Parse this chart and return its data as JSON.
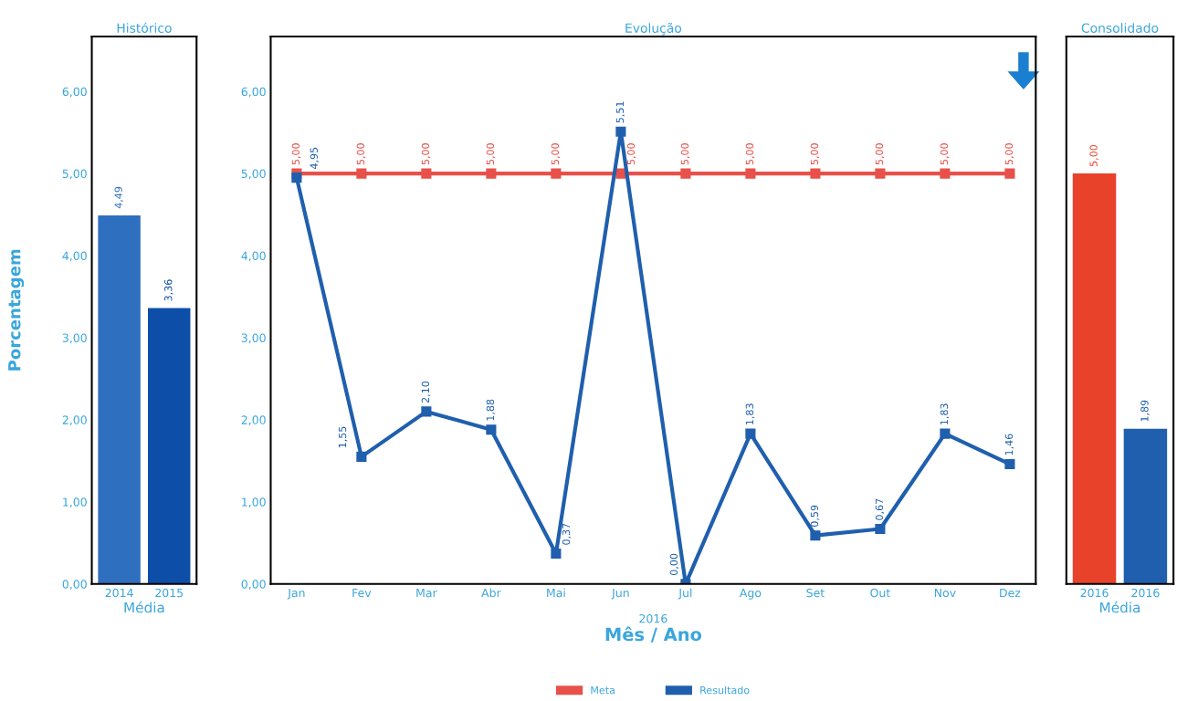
{
  "chart_data": [
    {
      "type": "bar",
      "title": "Histórico",
      "xlabel": "Média",
      "ylabel": "Porcentagem",
      "categories": [
        "2014",
        "2015"
      ],
      "values": [
        4.49,
        3.36
      ],
      "colors": [
        "#2f6fc0",
        "#0d4fa8"
      ],
      "value_labels": [
        "4,49",
        "3,36"
      ],
      "ylim": [
        0,
        6.67
      ],
      "yticks": [
        {
          "value": 0,
          "label": "0,00"
        },
        {
          "value": 1,
          "label": "1,00"
        },
        {
          "value": 2,
          "label": "2,00"
        },
        {
          "value": 3,
          "label": "3,00"
        },
        {
          "value": 4,
          "label": "4,00"
        },
        {
          "value": 5,
          "label": "5,00"
        },
        {
          "value": 6,
          "label": "6,00"
        }
      ],
      "grid": false
    },
    {
      "type": "line",
      "title": "Evolução",
      "xlabel": "Mês / Ano",
      "annotations": [
        "2016"
      ],
      "categories": [
        "Jan",
        "Fev",
        "Mar",
        "Abr",
        "Mai",
        "Jun",
        "Jul",
        "Ago",
        "Set",
        "Out",
        "Nov",
        "Dez"
      ],
      "marker": "square",
      "legend": "bottom",
      "grid": false,
      "ylim": [
        0,
        6.67
      ],
      "yticks": [
        {
          "value": 0,
          "label": "0,00"
        },
        {
          "value": 1,
          "label": "1,00"
        },
        {
          "value": 2,
          "label": "2,00"
        },
        {
          "value": 3,
          "label": "3,00"
        },
        {
          "value": 4,
          "label": "4,00"
        },
        {
          "value": 5,
          "label": "5,00"
        },
        {
          "value": 6,
          "label": "6,00"
        }
      ],
      "series": [
        {
          "name": "Meta",
          "color": "#e8504a",
          "values": [
            5.0,
            5.0,
            5.0,
            5.0,
            5.0,
            5.0,
            5.0,
            5.0,
            5.0,
            5.0,
            5.0,
            5.0
          ],
          "value_labels": [
            "5,00",
            "5,00",
            "5,00",
            "5,00",
            "5,00",
            "5,00",
            "5,00",
            "5,00",
            "5,00",
            "5,00",
            "5,00",
            "5,00"
          ]
        },
        {
          "name": "Resultado",
          "color": "#1f5fae",
          "values": [
            4.95,
            1.55,
            2.1,
            1.88,
            0.37,
            5.51,
            0.0,
            1.83,
            0.59,
            0.67,
            1.83,
            1.46
          ],
          "value_labels": [
            "4,95",
            "1,55",
            "2,10",
            "1,88",
            "0,37",
            "5,51",
            "0,00",
            "1,83",
            "0,59",
            "0,67",
            "1,83",
            "1,46"
          ]
        }
      ]
    },
    {
      "type": "bar",
      "title": "Consolidado",
      "xlabel": "Média",
      "categories": [
        "2016",
        "2016"
      ],
      "values": [
        5.0,
        1.89
      ],
      "colors": [
        "#e8432a",
        "#1f5fae"
      ],
      "value_labels": [
        "5,00",
        "1,89"
      ],
      "ylim": [
        0,
        6.67
      ],
      "tick_labels": "x",
      "grid": false
    }
  ]
}
